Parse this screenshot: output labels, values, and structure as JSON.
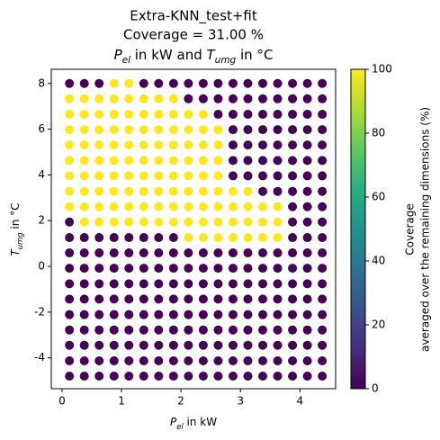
{
  "chart_data": {
    "type": "scatter",
    "title": [
      "Extra-KNN_test+fit",
      "Coverage = 31.00 %",
      [
        "P",
        "el",
        " in kW and ",
        "T",
        "umg",
        " in °C"
      ]
    ],
    "xlabel": [
      "P",
      "el",
      " in kW"
    ],
    "ylabel": [
      "T",
      "umg",
      " in °C"
    ],
    "x": [
      0.125,
      0.375,
      0.625,
      0.875,
      1.125,
      1.375,
      1.625,
      1.875,
      2.125,
      2.375,
      2.625,
      2.875,
      3.125,
      3.375,
      3.625,
      3.875,
      4.125,
      4.375
    ],
    "y": [
      -4.8,
      -4.13,
      -3.45,
      -2.78,
      -2.11,
      -1.43,
      -0.76,
      -0.08,
      0.59,
      1.26,
      1.94,
      2.61,
      3.28,
      3.96,
      4.63,
      5.31,
      5.98,
      6.65,
      7.33,
      8.0
    ],
    "values": [
      [
        0,
        0,
        0,
        0,
        0,
        0,
        0,
        0,
        0,
        0,
        0,
        0,
        0,
        0,
        0,
        0,
        0,
        0
      ],
      [
        0,
        0,
        0,
        0,
        0,
        0,
        0,
        0,
        0,
        0,
        0,
        0,
        0,
        0,
        0,
        0,
        0,
        0
      ],
      [
        0,
        0,
        0,
        0,
        0,
        0,
        0,
        0,
        0,
        0,
        0,
        0,
        0,
        0,
        0,
        0,
        0,
        0
      ],
      [
        0,
        0,
        0,
        0,
        0,
        0,
        0,
        0,
        0,
        0,
        0,
        0,
        0,
        0,
        0,
        0,
        0,
        0
      ],
      [
        0,
        0,
        0,
        0,
        0,
        0,
        0,
        0,
        0,
        0,
        0,
        0,
        0,
        0,
        0,
        0,
        0,
        0
      ],
      [
        0,
        0,
        0,
        0,
        0,
        0,
        0,
        0,
        0,
        0,
        0,
        0,
        0,
        0,
        0,
        0,
        0,
        0
      ],
      [
        0,
        0,
        0,
        0,
        0,
        0,
        0,
        0,
        0,
        0,
        0,
        0,
        0,
        0,
        0,
        0,
        0,
        0
      ],
      [
        0,
        0,
        0,
        0,
        0,
        0,
        0,
        0,
        0,
        0,
        0,
        0,
        0,
        0,
        0,
        0,
        0,
        0
      ],
      [
        0,
        0,
        0,
        0,
        0,
        0,
        0,
        0,
        0,
        0,
        0,
        0,
        0,
        0,
        0,
        0,
        0,
        0
      ],
      [
        0,
        0,
        0,
        0,
        0,
        0,
        0,
        0,
        100,
        100,
        100,
        100,
        100,
        100,
        100,
        0,
        0,
        0
      ],
      [
        0,
        100,
        100,
        100,
        100,
        100,
        100,
        100,
        100,
        100,
        100,
        100,
        100,
        100,
        100,
        0,
        0,
        0
      ],
      [
        100,
        100,
        100,
        100,
        100,
        100,
        100,
        100,
        100,
        100,
        100,
        100,
        100,
        100,
        100,
        0,
        0,
        0
      ],
      [
        100,
        100,
        100,
        100,
        100,
        100,
        100,
        100,
        100,
        100,
        100,
        100,
        100,
        0,
        0,
        0,
        0,
        0
      ],
      [
        100,
        100,
        100,
        100,
        100,
        100,
        100,
        100,
        100,
        100,
        100,
        0,
        0,
        0,
        0,
        0,
        0,
        0
      ],
      [
        100,
        100,
        100,
        100,
        100,
        100,
        100,
        100,
        100,
        100,
        100,
        0,
        0,
        0,
        0,
        0,
        0,
        0
      ],
      [
        100,
        100,
        100,
        100,
        100,
        100,
        100,
        100,
        100,
        100,
        100,
        0,
        0,
        0,
        0,
        0,
        0,
        0
      ],
      [
        100,
        100,
        100,
        100,
        100,
        100,
        100,
        100,
        100,
        100,
        100,
        0,
        0,
        0,
        0,
        0,
        0,
        0
      ],
      [
        100,
        100,
        100,
        100,
        100,
        100,
        100,
        100,
        100,
        100,
        0,
        0,
        0,
        0,
        0,
        0,
        0,
        0
      ],
      [
        100,
        100,
        100,
        100,
        100,
        100,
        100,
        100,
        0,
        0,
        0,
        0,
        0,
        0,
        0,
        0,
        0,
        0
      ],
      [
        0,
        0,
        0,
        100,
        100,
        0,
        0,
        0,
        0,
        0,
        0,
        0,
        0,
        0,
        0,
        0,
        0,
        0
      ]
    ],
    "colormap": "viridis",
    "xlim": [
      -0.18,
      4.6
    ],
    "xticks": [
      0,
      1,
      2,
      3,
      4
    ],
    "ylim": [
      -5.35,
      8.62
    ],
    "yticks": [
      -4,
      -2,
      0,
      2,
      4,
      6,
      8
    ],
    "clim": [
      0,
      100
    ],
    "cticks": [
      0,
      20,
      40,
      60,
      80,
      100
    ],
    "clabel": [
      "Coverage",
      "averaged over the remaining dimensions (%)"
    ]
  }
}
